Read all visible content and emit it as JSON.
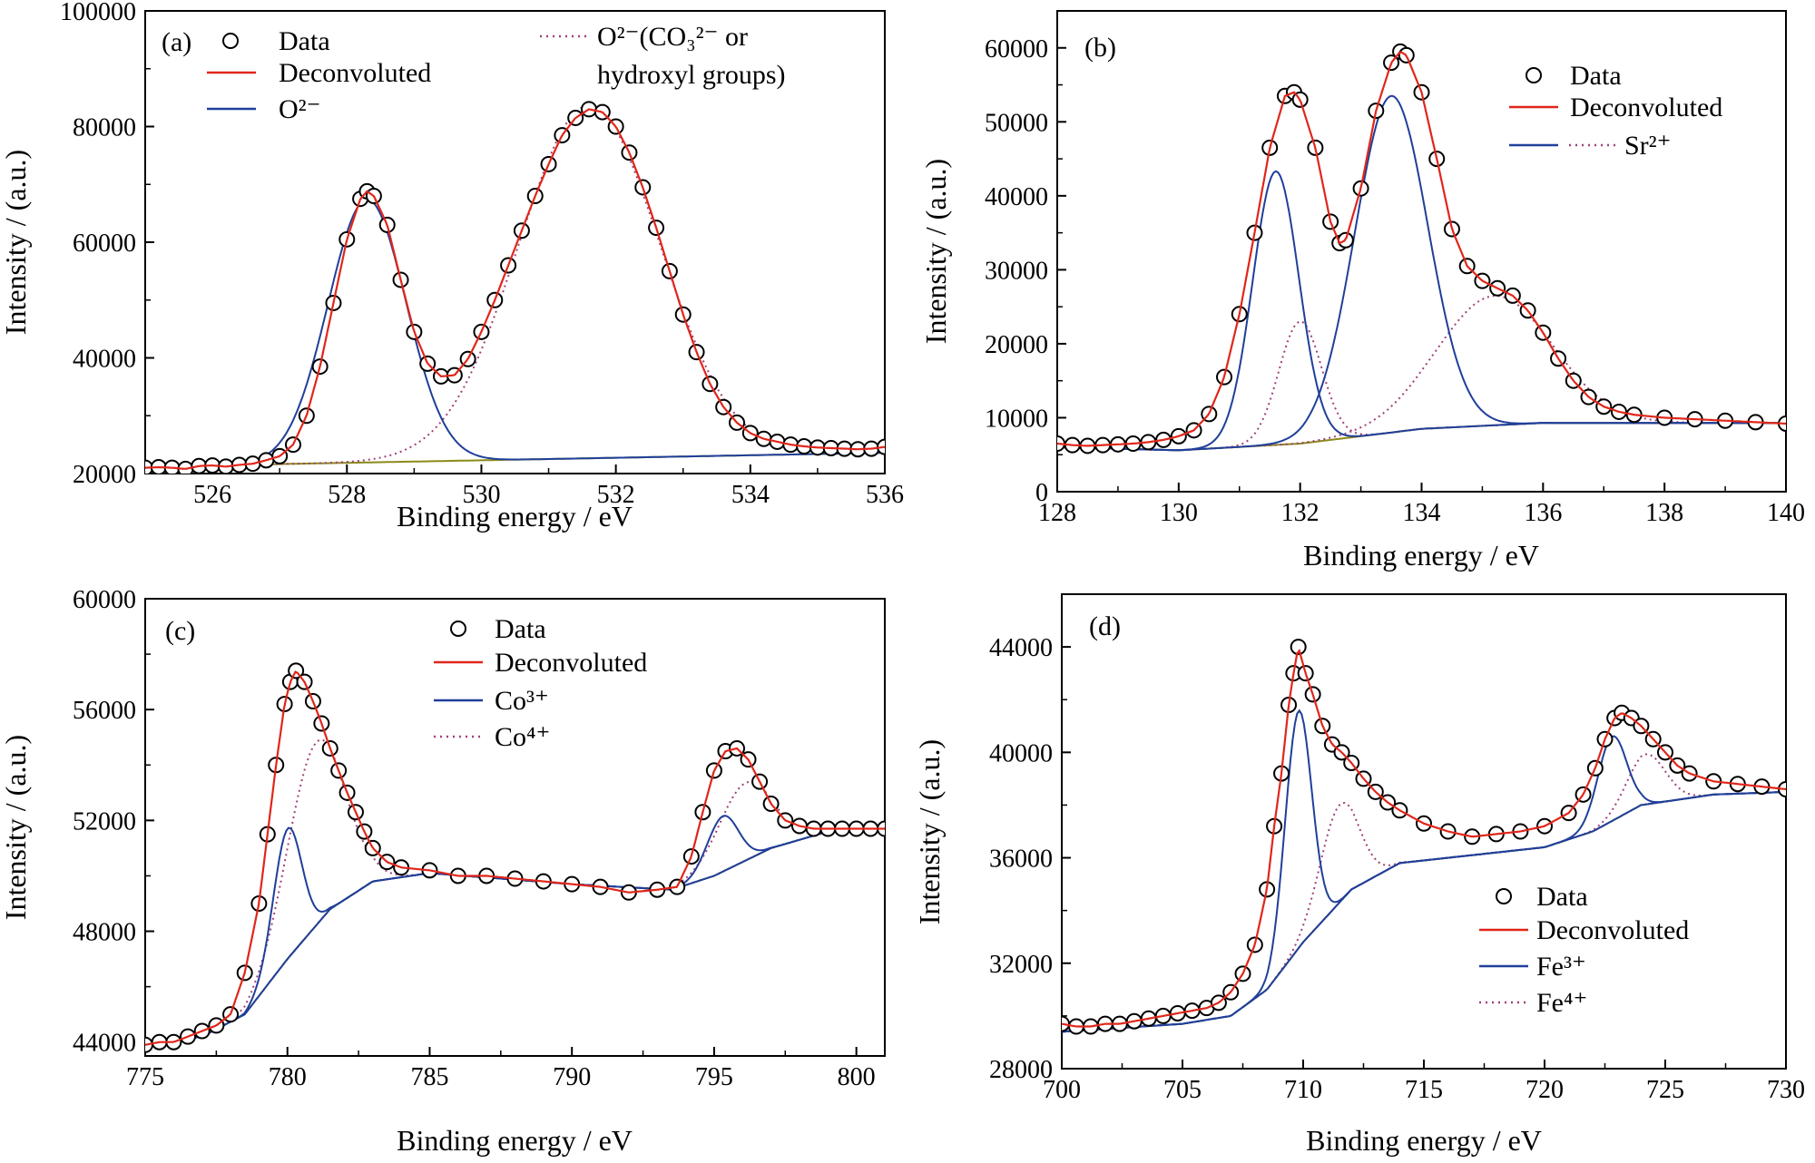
{
  "colors": {
    "data_marker": "#000000",
    "deconvoluted": "#e0261a",
    "blue_component": "#1f3f9a",
    "dotted_component": "#a0407a",
    "background": "#8a8a1a"
  },
  "chart_data": [
    {
      "id": "a",
      "type": "scatter",
      "panel_label": "(a)",
      "xlabel": "Binding energy / eV",
      "ylabel": "Intensity / (a.u.)",
      "xlim": [
        525,
        536
      ],
      "ylim": [
        20000,
        100000
      ],
      "xticks": [
        526,
        528,
        530,
        532,
        534,
        536
      ],
      "yticks": [
        20000,
        40000,
        60000,
        80000,
        100000
      ],
      "xtick_labels": [
        "526",
        "528",
        "530",
        "532",
        "534",
        "536"
      ],
      "ytick_labels": [
        "20000",
        "40000",
        "60000",
        "80000",
        "100000"
      ],
      "legend": {
        "data": "Data",
        "deconvoluted": "Deconvoluted",
        "blue": "O²⁻",
        "dotted_line1": "O²⁻(CO₃²⁻ or",
        "dotted_line2": "hydroxyl groups)"
      },
      "baseline": [
        [
          525,
          21200
        ],
        [
          536,
          23600
        ]
      ],
      "peaks_blue": [
        {
          "center": 528.3,
          "height": 45500,
          "width": 0.58
        }
      ],
      "peaks_dotted": [
        {
          "center": 531.6,
          "height": 61000,
          "width": 1.05
        }
      ],
      "data_points": [
        [
          525.0,
          21000
        ],
        [
          525.2,
          21100
        ],
        [
          525.4,
          21000
        ],
        [
          525.6,
          20800
        ],
        [
          525.8,
          21300
        ],
        [
          526.0,
          21400
        ],
        [
          526.2,
          21200
        ],
        [
          526.4,
          21500
        ],
        [
          526.6,
          21700
        ],
        [
          526.8,
          22300
        ],
        [
          527.0,
          23000
        ],
        [
          527.2,
          25000
        ],
        [
          527.4,
          30000
        ],
        [
          527.6,
          38500
        ],
        [
          527.8,
          49500
        ],
        [
          528.0,
          60500
        ],
        [
          528.2,
          67500
        ],
        [
          528.3,
          68800
        ],
        [
          528.4,
          68000
        ],
        [
          528.6,
          63000
        ],
        [
          528.8,
          53500
        ],
        [
          529.0,
          44500
        ],
        [
          529.2,
          39000
        ],
        [
          529.4,
          36800
        ],
        [
          529.6,
          37000
        ],
        [
          529.8,
          39800
        ],
        [
          530.0,
          44500
        ],
        [
          530.2,
          50000
        ],
        [
          530.4,
          56000
        ],
        [
          530.6,
          62000
        ],
        [
          530.8,
          68000
        ],
        [
          531.0,
          73500
        ],
        [
          531.2,
          78500
        ],
        [
          531.4,
          81500
        ],
        [
          531.6,
          83000
        ],
        [
          531.8,
          82500
        ],
        [
          532.0,
          80000
        ],
        [
          532.2,
          75500
        ],
        [
          532.4,
          69500
        ],
        [
          532.6,
          62500
        ],
        [
          532.8,
          55000
        ],
        [
          533.0,
          47500
        ],
        [
          533.2,
          41000
        ],
        [
          533.4,
          35500
        ],
        [
          533.6,
          31500
        ],
        [
          533.8,
          28800
        ],
        [
          534.0,
          27000
        ],
        [
          534.2,
          26000
        ],
        [
          534.4,
          25500
        ],
        [
          534.6,
          25000
        ],
        [
          534.8,
          24700
        ],
        [
          535.0,
          24500
        ],
        [
          535.2,
          24400
        ],
        [
          535.4,
          24300
        ],
        [
          535.6,
          24200
        ],
        [
          535.8,
          24300
        ],
        [
          536.0,
          24600
        ]
      ]
    },
    {
      "id": "b",
      "type": "scatter",
      "panel_label": "(b)",
      "xlabel": "Binding energy / eV",
      "ylabel": "Intensity / (a.u.)",
      "xlim": [
        128,
        140
      ],
      "ylim": [
        0,
        65000
      ],
      "xticks": [
        128,
        130,
        132,
        134,
        136,
        138,
        140
      ],
      "yticks": [
        0,
        10000,
        20000,
        30000,
        40000,
        50000,
        60000
      ],
      "xtick_labels": [
        "128",
        "130",
        "132",
        "134",
        "136",
        "138",
        "140"
      ],
      "ytick_labels": [
        "0",
        "10000",
        "20000",
        "30000",
        "40000",
        "50000",
        "60000"
      ],
      "legend": {
        "data": "Data",
        "deconvoluted": "Deconvoluted",
        "dotted": "Sr²⁺"
      },
      "baseline": [
        [
          128,
          6000
        ],
        [
          130,
          5600
        ],
        [
          132,
          6500
        ],
        [
          134,
          8500
        ],
        [
          136,
          9300
        ],
        [
          140,
          9300
        ]
      ],
      "peaks_blue": [
        {
          "center": 131.6,
          "height": 37000,
          "width": 0.38
        },
        {
          "center": 133.5,
          "height": 45500,
          "width": 0.6
        }
      ],
      "peaks_dotted": [
        {
          "center": 132.0,
          "height": 16500,
          "width": 0.35
        },
        {
          "center": 135.2,
          "height": 17500,
          "width": 0.95
        }
      ],
      "data_points": [
        [
          128.0,
          6500
        ],
        [
          128.25,
          6300
        ],
        [
          128.5,
          6200
        ],
        [
          128.75,
          6300
        ],
        [
          129.0,
          6400
        ],
        [
          129.25,
          6500
        ],
        [
          129.5,
          6700
        ],
        [
          129.75,
          7000
        ],
        [
          130.0,
          7500
        ],
        [
          130.25,
          8300
        ],
        [
          130.5,
          10500
        ],
        [
          130.75,
          15500
        ],
        [
          131.0,
          24000
        ],
        [
          131.25,
          35000
        ],
        [
          131.5,
          46500
        ],
        [
          131.75,
          53500
        ],
        [
          131.9,
          54000
        ],
        [
          132.0,
          53000
        ],
        [
          132.25,
          46500
        ],
        [
          132.5,
          36500
        ],
        [
          132.65,
          33600
        ],
        [
          132.75,
          34000
        ],
        [
          133.0,
          41000
        ],
        [
          133.25,
          51500
        ],
        [
          133.5,
          58000
        ],
        [
          133.65,
          59500
        ],
        [
          133.75,
          59000
        ],
        [
          134.0,
          54000
        ],
        [
          134.25,
          45000
        ],
        [
          134.5,
          35500
        ],
        [
          134.75,
          30500
        ],
        [
          135.0,
          28500
        ],
        [
          135.25,
          27500
        ],
        [
          135.5,
          26500
        ],
        [
          135.75,
          24500
        ],
        [
          136.0,
          21500
        ],
        [
          136.25,
          18000
        ],
        [
          136.5,
          15000
        ],
        [
          136.75,
          12800
        ],
        [
          137.0,
          11500
        ],
        [
          137.25,
          10800
        ],
        [
          137.5,
          10400
        ],
        [
          138.0,
          10000
        ],
        [
          138.5,
          9800
        ],
        [
          139.0,
          9600
        ],
        [
          139.5,
          9400
        ],
        [
          140.0,
          9200
        ]
      ]
    },
    {
      "id": "c",
      "type": "scatter",
      "panel_label": "(c)",
      "xlabel": "Binding energy / eV",
      "ylabel": "Intensity / (a.u.)",
      "xlim": [
        775,
        801
      ],
      "ylim": [
        43500,
        60000
      ],
      "xticks": [
        775,
        780,
        785,
        790,
        795,
        800
      ],
      "yticks": [
        44000,
        48000,
        52000,
        56000,
        60000
      ],
      "xtick_labels": [
        "775",
        "780",
        "785",
        "790",
        "795",
        "800"
      ],
      "ytick_labels": [
        "44000",
        "48000",
        "52000",
        "56000",
        "60000"
      ],
      "legend": {
        "data": "Data",
        "deconvoluted": "Deconvoluted",
        "blue": "Co³⁺",
        "dotted": "Co⁴⁺"
      },
      "baseline": [
        [
          775,
          43900
        ],
        [
          777,
          44200
        ],
        [
          778.5,
          45000
        ],
        [
          780,
          47000
        ],
        [
          781.5,
          48800
        ],
        [
          783,
          49800
        ],
        [
          785,
          50100
        ],
        [
          790,
          49700
        ],
        [
          793.5,
          49500
        ],
        [
          795,
          50000
        ],
        [
          797,
          51000
        ],
        [
          799,
          51600
        ],
        [
          801,
          51700
        ]
      ],
      "peaks_blue": [
        {
          "center": 780.0,
          "height": 4700,
          "width": 0.5
        },
        {
          "center": 795.3,
          "height": 2000,
          "width": 0.55
        }
      ],
      "peaks_dotted": [
        {
          "center": 781.0,
          "height": 6600,
          "width": 1.0
        },
        {
          "center": 796.1,
          "height": 2800,
          "width": 0.95
        }
      ],
      "data_points": [
        [
          775.0,
          43900
        ],
        [
          775.5,
          44000
        ],
        [
          776.0,
          44000
        ],
        [
          776.5,
          44200
        ],
        [
          777.0,
          44400
        ],
        [
          777.5,
          44600
        ],
        [
          778.0,
          45000
        ],
        [
          778.5,
          46500
        ],
        [
          779.0,
          49000
        ],
        [
          779.3,
          51500
        ],
        [
          779.6,
          54000
        ],
        [
          779.9,
          56200
        ],
        [
          780.1,
          57000
        ],
        [
          780.3,
          57400
        ],
        [
          780.6,
          57000
        ],
        [
          780.9,
          56300
        ],
        [
          781.2,
          55500
        ],
        [
          781.5,
          54600
        ],
        [
          781.8,
          53800
        ],
        [
          782.1,
          53000
        ],
        [
          782.4,
          52300
        ],
        [
          782.7,
          51600
        ],
        [
          783.0,
          51000
        ],
        [
          783.5,
          50500
        ],
        [
          784.0,
          50300
        ],
        [
          785.0,
          50200
        ],
        [
          786.0,
          50000
        ],
        [
          787.0,
          50000
        ],
        [
          788.0,
          49900
        ],
        [
          789.0,
          49800
        ],
        [
          790.0,
          49700
        ],
        [
          791.0,
          49600
        ],
        [
          792.0,
          49400
        ],
        [
          793.0,
          49500
        ],
        [
          793.7,
          49600
        ],
        [
          794.2,
          50700
        ],
        [
          794.6,
          52300
        ],
        [
          795.0,
          53800
        ],
        [
          795.4,
          54500
        ],
        [
          795.8,
          54600
        ],
        [
          796.2,
          54200
        ],
        [
          796.6,
          53400
        ],
        [
          797.0,
          52600
        ],
        [
          797.5,
          52000
        ],
        [
          798.0,
          51800
        ],
        [
          798.5,
          51700
        ],
        [
          799.0,
          51700
        ],
        [
          799.5,
          51700
        ],
        [
          800.0,
          51700
        ],
        [
          800.5,
          51700
        ],
        [
          801.0,
          51700
        ]
      ]
    },
    {
      "id": "d",
      "type": "scatter",
      "panel_label": "(d)",
      "xlabel": "Binding energy / eV",
      "ylabel": "Intensity / (a.u.)",
      "xlim": [
        700,
        730
      ],
      "ylim": [
        28000,
        46000
      ],
      "xticks": [
        700,
        705,
        710,
        715,
        720,
        725,
        730
      ],
      "yticks": [
        28000,
        32000,
        36000,
        40000,
        44000
      ],
      "xtick_labels": [
        "700",
        "705",
        "710",
        "715",
        "720",
        "725",
        "730"
      ],
      "ytick_labels": [
        "28000",
        "32000",
        "36000",
        "40000",
        "44000"
      ],
      "legend": {
        "data": "Data",
        "deconvoluted": "Deconvoluted",
        "blue": "Fe³⁺",
        "dotted": "Fe⁴⁺"
      },
      "baseline": [
        [
          700,
          29400
        ],
        [
          705,
          29700
        ],
        [
          707,
          30000
        ],
        [
          708.5,
          31000
        ],
        [
          710,
          32800
        ],
        [
          712,
          34800
        ],
        [
          714,
          35800
        ],
        [
          716,
          36000
        ],
        [
          718,
          36200
        ],
        [
          720,
          36400
        ],
        [
          722,
          37000
        ],
        [
          724,
          38000
        ],
        [
          727,
          38400
        ],
        [
          730,
          38500
        ]
      ],
      "peaks_blue": [
        {
          "center": 709.8,
          "height": 9000,
          "width": 0.55
        },
        {
          "center": 722.8,
          "height": 3200,
          "width": 0.6
        }
      ],
      "peaks_dotted": [
        {
          "center": 711.5,
          "height": 3700,
          "width": 0.8
        },
        {
          "center": 724.2,
          "height": 1900,
          "width": 0.8
        }
      ],
      "data_points": [
        [
          700.0,
          29700
        ],
        [
          700.6,
          29600
        ],
        [
          701.2,
          29600
        ],
        [
          701.8,
          29700
        ],
        [
          702.4,
          29700
        ],
        [
          703.0,
          29800
        ],
        [
          703.6,
          29900
        ],
        [
          704.2,
          30000
        ],
        [
          704.8,
          30100
        ],
        [
          705.4,
          30200
        ],
        [
          706.0,
          30300
        ],
        [
          706.5,
          30500
        ],
        [
          707.0,
          30900
        ],
        [
          707.5,
          31600
        ],
        [
          708.0,
          32700
        ],
        [
          708.5,
          34800
        ],
        [
          708.8,
          37200
        ],
        [
          709.1,
          39200
        ],
        [
          709.4,
          41800
        ],
        [
          709.6,
          43000
        ],
        [
          709.8,
          44000
        ],
        [
          710.1,
          43000
        ],
        [
          710.4,
          42200
        ],
        [
          710.8,
          41000
        ],
        [
          711.2,
          40300
        ],
        [
          711.6,
          40000
        ],
        [
          712.0,
          39600
        ],
        [
          712.5,
          39000
        ],
        [
          713.0,
          38500
        ],
        [
          713.5,
          38100
        ],
        [
          714.0,
          37800
        ],
        [
          715.0,
          37300
        ],
        [
          716.0,
          37000
        ],
        [
          717.0,
          36800
        ],
        [
          718.0,
          36900
        ],
        [
          719.0,
          37000
        ],
        [
          720.0,
          37200
        ],
        [
          721.0,
          37700
        ],
        [
          721.6,
          38400
        ],
        [
          722.1,
          39400
        ],
        [
          722.5,
          40500
        ],
        [
          722.9,
          41300
        ],
        [
          723.2,
          41500
        ],
        [
          723.6,
          41300
        ],
        [
          724.0,
          41000
        ],
        [
          724.5,
          40500
        ],
        [
          725.0,
          40000
        ],
        [
          725.5,
          39500
        ],
        [
          726.0,
          39200
        ],
        [
          727.0,
          38900
        ],
        [
          728.0,
          38800
        ],
        [
          729.0,
          38700
        ],
        [
          730.0,
          38600
        ]
      ]
    }
  ]
}
